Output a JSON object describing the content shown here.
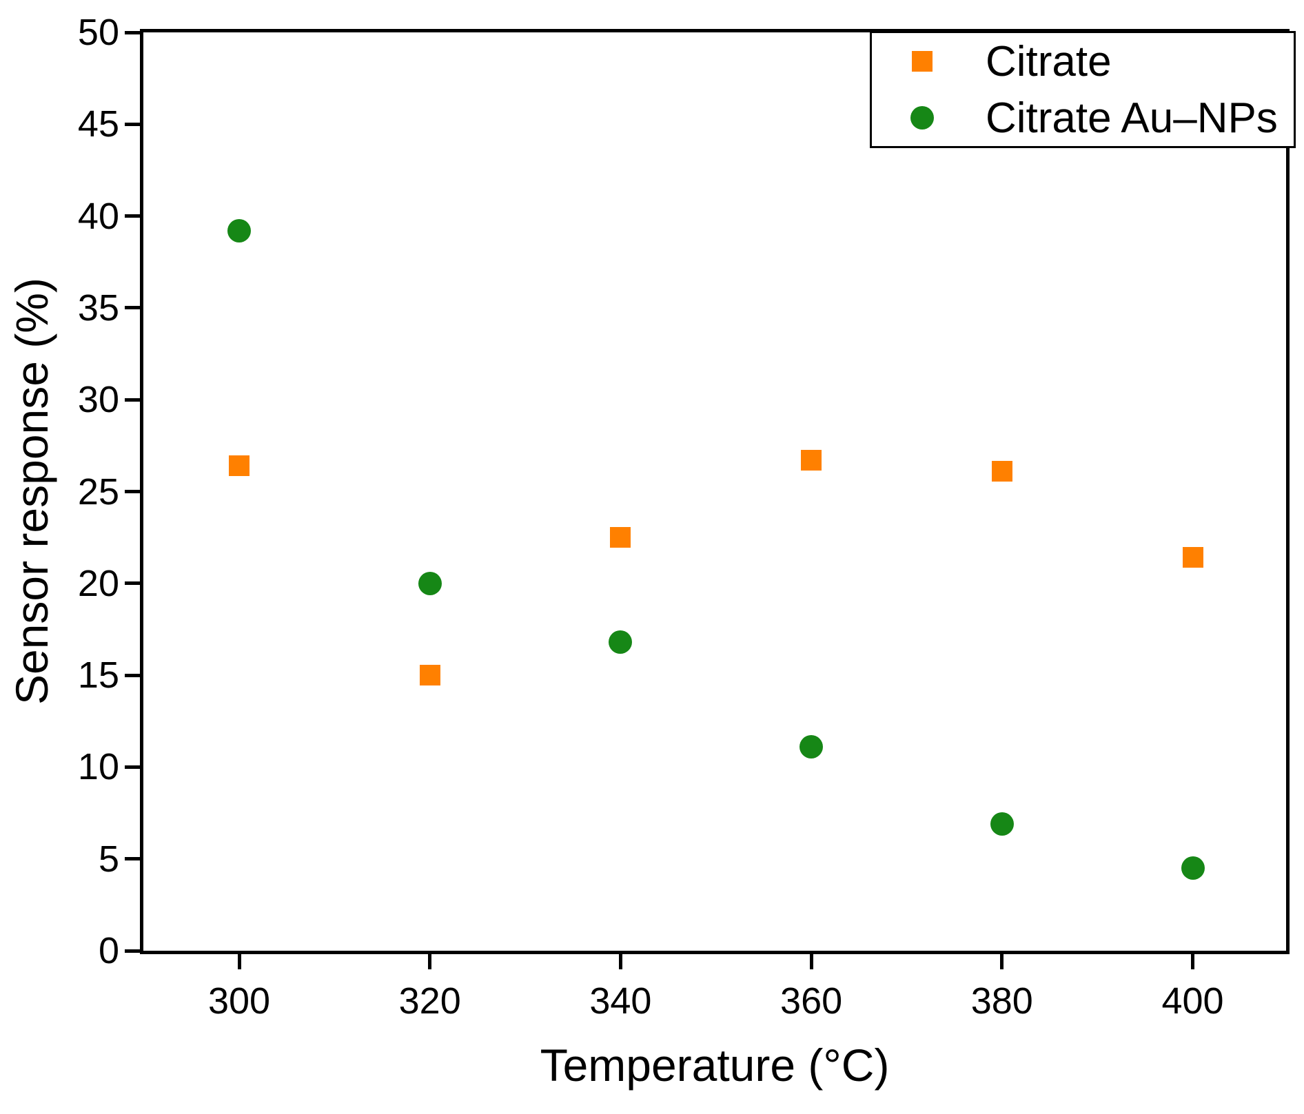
{
  "chart_data": {
    "type": "scatter",
    "title": "",
    "xlabel": "Temperature (°C)",
    "ylabel": "Sensor response (%)",
    "x": [
      300,
      320,
      340,
      360,
      380,
      400
    ],
    "series": [
      {
        "name": "Citrate",
        "marker": "square",
        "color": "#FF8000",
        "values": [
          26.4,
          15.0,
          22.5,
          26.7,
          26.1,
          21.4
        ]
      },
      {
        "name": "Citrate Au–NPs",
        "marker": "circle",
        "color": "#168716",
        "values": [
          39.2,
          20.0,
          16.8,
          11.1,
          6.9,
          4.5
        ]
      }
    ],
    "xlim": [
      290,
      410
    ],
    "ylim": [
      0,
      50
    ],
    "xticks": [
      300,
      320,
      340,
      360,
      380,
      400
    ],
    "yticks": [
      0,
      5,
      10,
      15,
      20,
      25,
      30,
      35,
      40,
      45,
      50
    ],
    "grid": false,
    "legend_position": "top-right",
    "frame": "full-box"
  }
}
